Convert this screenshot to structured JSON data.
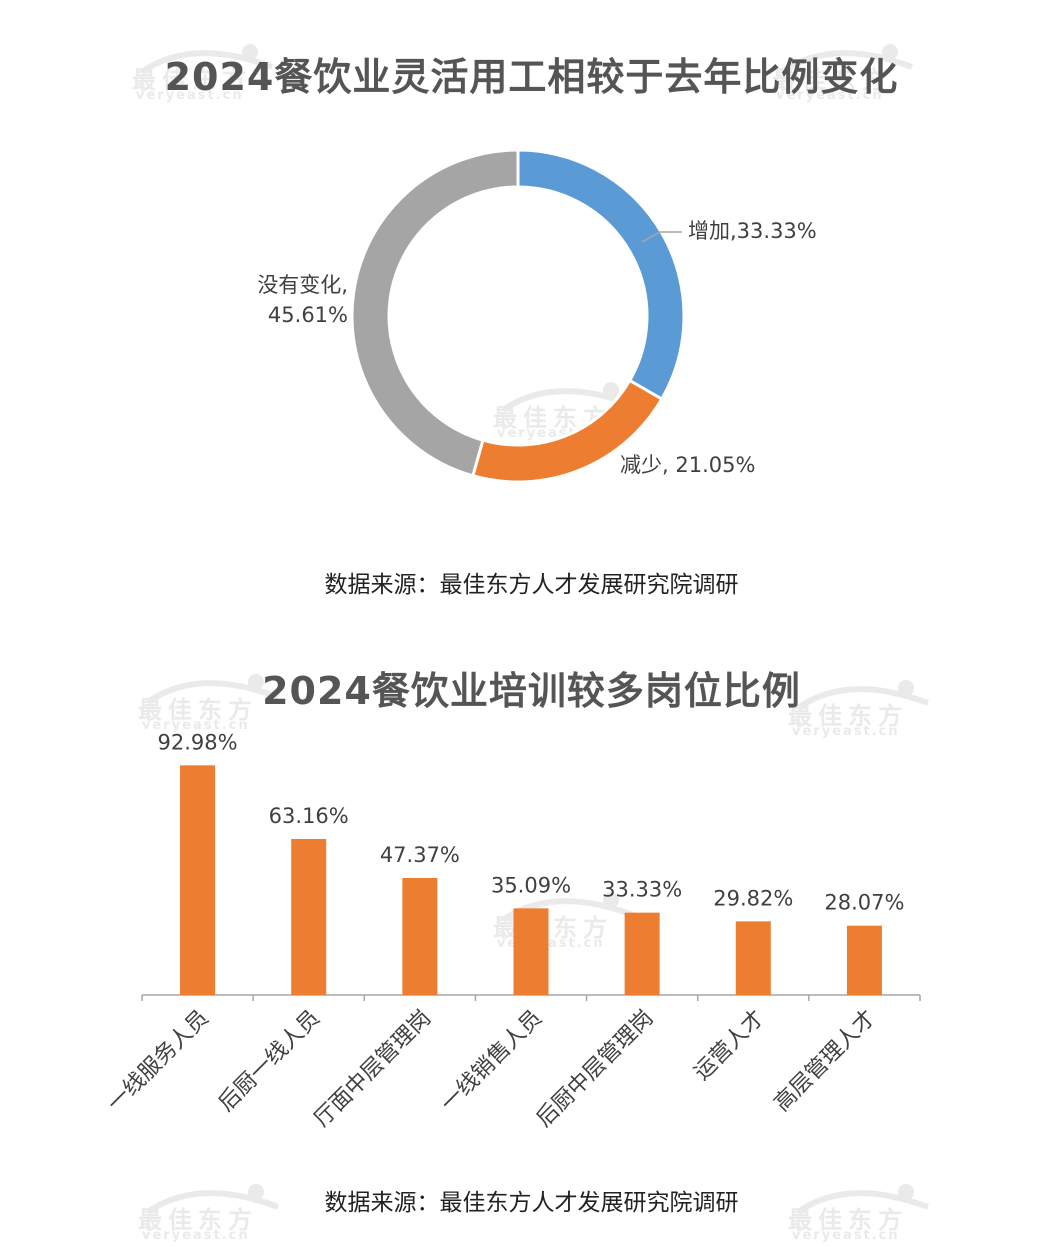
{
  "watermark": {
    "text": "最佳东方",
    "url": "veryeast.cn"
  },
  "charts": {
    "donut": {
      "title": "2024餐饮业灵活用工相较于去年比例变化",
      "source": "数据来源：最佳东方人才发展研究院调研"
    },
    "bar": {
      "title": "2024餐饮业培训较多岗位比例",
      "source": "数据来源：最佳东方人才发展研究院调研"
    }
  },
  "chart_data": [
    {
      "type": "pie",
      "variant": "donut",
      "title": "2024餐饮业灵活用工相较于去年比例变化",
      "slices": [
        {
          "label": "增加",
          "value": 33.33,
          "display": "增加,33.33%",
          "color": "#5B9BD5"
        },
        {
          "label": "减少",
          "value": 21.05,
          "display": "减少, 21.05%",
          "color": "#ED7D31"
        },
        {
          "label": "没有变化",
          "value": 45.61,
          "display": "没有变化,\n45.61%",
          "color": "#A5A5A5"
        }
      ],
      "legend": "none"
    },
    {
      "type": "bar",
      "title": "2024餐饮业培训较多岗位比例",
      "categories": [
        "一线服务人员",
        "后厨一线人员",
        "厅面中层管理岗",
        "一线销售人员",
        "后厨中层管理岗",
        "运营人才",
        "高层管理人才"
      ],
      "values": [
        92.98,
        63.16,
        47.37,
        35.09,
        33.33,
        29.82,
        28.07
      ],
      "value_labels": [
        "92.98%",
        "63.16%",
        "47.37%",
        "35.09%",
        "33.33%",
        "29.82%",
        "28.07%"
      ],
      "color": "#ED7D31",
      "ylim": [
        0,
        100
      ],
      "grid": false,
      "legend": "none"
    }
  ]
}
